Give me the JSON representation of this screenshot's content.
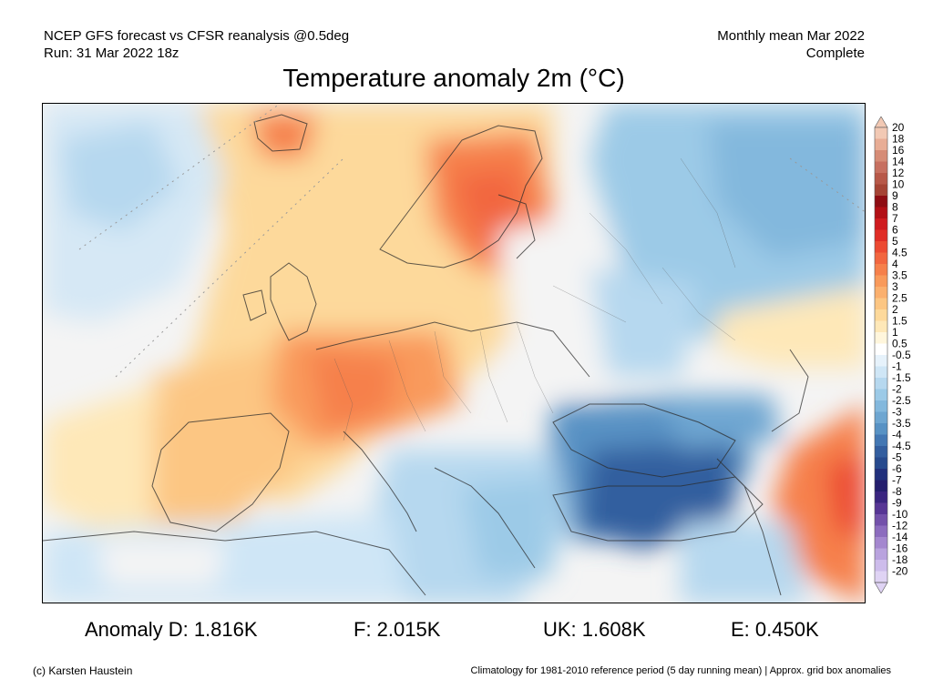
{
  "header": {
    "line1_left": "NCEP GFS forecast vs CFSR reanalysis @0.5deg",
    "line2_left": "Run: 31 Mar 2022 18z",
    "line1_right": "Monthly mean Mar 2022",
    "line2_right": "Complete"
  },
  "title": "Temperature anomaly 2m (°C)",
  "colorbar": {
    "labels": [
      "20",
      "18",
      "16",
      "14",
      "12",
      "10",
      "9",
      "8",
      "7",
      "6",
      "5",
      "4.5",
      "4",
      "3.5",
      "3",
      "2.5",
      "2",
      "1.5",
      "1",
      "0.5",
      "-0.5",
      "-1",
      "-1.5",
      "-2",
      "-2.5",
      "-3",
      "-3.5",
      "-4",
      "-4.5",
      "-5",
      "-6",
      "-7",
      "-8",
      "-9",
      "-10",
      "-12",
      "-14",
      "-16",
      "-18",
      "-20"
    ],
    "colors": [
      "#f2c9b4",
      "#e8ad95",
      "#d68c76",
      "#c77060",
      "#b75848",
      "#a54435",
      "#8e0d13",
      "#b21016",
      "#cf1b1f",
      "#e02d26",
      "#ec4a32",
      "#f2663f",
      "#f6804b",
      "#f99a5b",
      "#fbb06e",
      "#fcc683",
      "#fdd99b",
      "#fee8b8",
      "#fff6dc",
      "#ffffff",
      "#e6f2fb",
      "#cfe6f6",
      "#b6d8ef",
      "#9ccae7",
      "#83b8dd",
      "#6ea6d1",
      "#5892c4",
      "#4377b3",
      "#335e9f",
      "#274a8e",
      "#21307c",
      "#241e6d",
      "#3a2580",
      "#573695",
      "#7351aa",
      "#8c6cbe",
      "#a487cf",
      "#b9a3de",
      "#cdbceb",
      "#dfd3f4"
    ]
  },
  "map": {
    "projection": "polar stereographic",
    "ocean_tint": "#f3d49e",
    "neutral_tint": "#f4f4f4"
  },
  "stats": [
    {
      "label": "Anomaly D: 1.816K"
    },
    {
      "label": "F: 2.015K"
    },
    {
      "label": "UK: 1.608K"
    },
    {
      "label": "E: 0.450K"
    }
  ],
  "footer": {
    "left": "(c) Karsten Haustein",
    "right": "Climatology for 1981-2010 reference period (5 day running mean) | Approx. grid box anomalies"
  }
}
